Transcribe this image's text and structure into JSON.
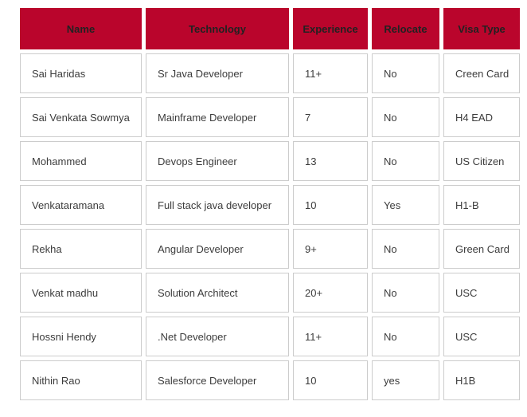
{
  "colors": {
    "header_bg": "#ba052c",
    "header_text": "#222222",
    "body_text": "#3c3c3c",
    "cell_border": "#cccccc",
    "cell_bg": "#ffffff"
  },
  "table": {
    "columns": [
      {
        "id": "name",
        "label": "Name"
      },
      {
        "id": "technology",
        "label": "Technology"
      },
      {
        "id": "experience",
        "label": "Experience"
      },
      {
        "id": "relocate",
        "label": "Relocate"
      },
      {
        "id": "visa-type",
        "label": "Visa Type"
      }
    ],
    "rows": [
      {
        "cells": [
          "Sai Haridas",
          "Sr Java Developer",
          "11+",
          "No",
          "Creen Card"
        ]
      },
      {
        "cells": [
          "Sai Venkata Sowmya",
          "Mainframe Developer",
          "7",
          "No",
          "H4 EAD"
        ]
      },
      {
        "cells": [
          "Mohammed",
          "Devops Engineer",
          "13",
          "No",
          "US Citizen"
        ]
      },
      {
        "cells": [
          "Venkataramana",
          "Full stack java developer",
          "10",
          "Yes",
          "H1-B"
        ]
      },
      {
        "cells": [
          "Rekha",
          "Angular Developer",
          "9+",
          "No",
          "Green Card"
        ]
      },
      {
        "cells": [
          "Venkat madhu",
          "Solution Architect",
          "20+",
          "No",
          "USC"
        ]
      },
      {
        "cells": [
          "Hossni Hendy",
          ".Net Developer",
          "11+",
          "No",
          "USC"
        ]
      },
      {
        "cells": [
          "Nithin Rao",
          "Salesforce Developer",
          "10",
          "yes",
          "H1B"
        ]
      }
    ]
  }
}
